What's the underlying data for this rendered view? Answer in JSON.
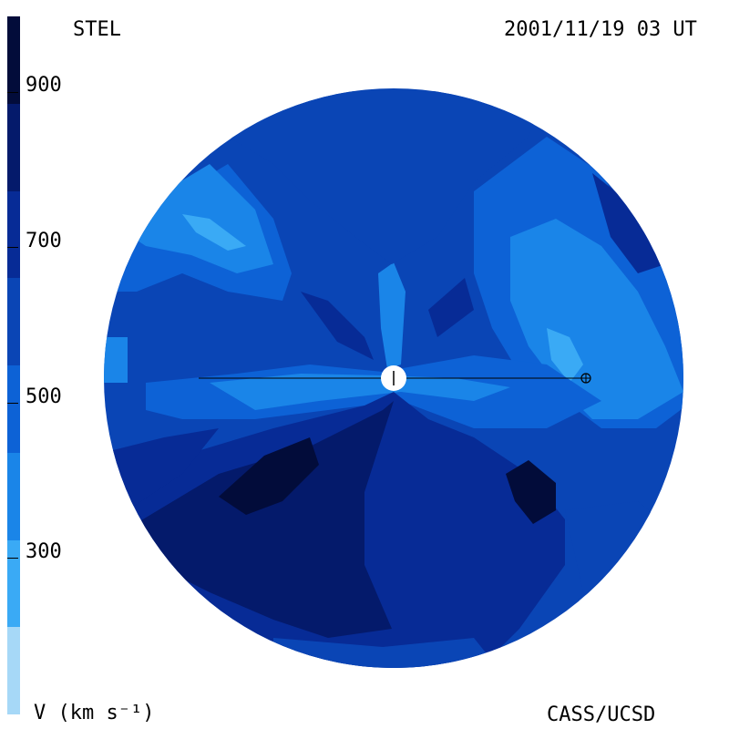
{
  "header": {
    "instrument": "STEL",
    "timestamp": "2001/11/19 03 UT"
  },
  "footer": {
    "units_label": "V (km s⁻¹)",
    "credit": "CASS/UCSD"
  },
  "colorbar": {
    "ticks": [
      "300",
      "500",
      "700",
      "900"
    ],
    "bands": [
      "#a6d8f7",
      "#3aaaf5",
      "#1a85e8",
      "#0d62d6",
      "#0a45b5",
      "#072b96",
      "#041a6b",
      "#020c3a"
    ]
  },
  "map": {
    "colors": {
      "v250": "#3aaaf5",
      "v350": "#1a85e8",
      "v450": "#0d62d6",
      "v550": "#0a45b5",
      "v650": "#072b96",
      "v750": "#041a6b",
      "v850": "#020c3a",
      "sun": "#ffffff",
      "line": "#000000"
    },
    "markers": [
      "sun-marker",
      "earth-marker"
    ]
  }
}
